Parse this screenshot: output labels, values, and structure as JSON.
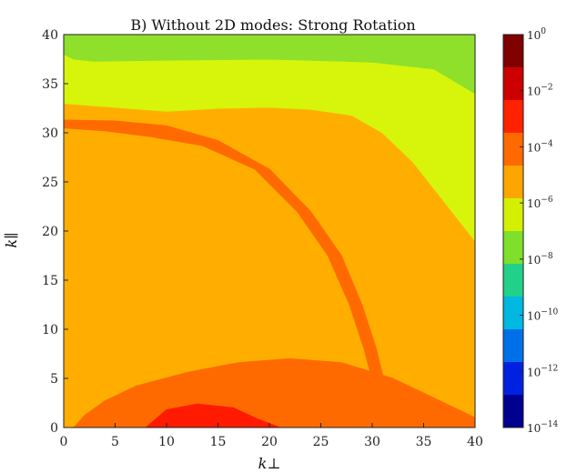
{
  "chart_data": {
    "type": "heatmap",
    "title": "B) Without 2D modes: Strong Rotation",
    "xlabel": "k⊥",
    "ylabel": "k∥",
    "xlim": [
      0,
      40
    ],
    "ylim": [
      0,
      40
    ],
    "x_ticks": [
      "0",
      "5",
      "10",
      "15",
      "20",
      "25",
      "30",
      "35",
      "40"
    ],
    "y_ticks": [
      "0",
      "5",
      "10",
      "15",
      "20",
      "25",
      "30",
      "35",
      "40"
    ],
    "x_tick_values": [
      0,
      5,
      10,
      15,
      20,
      25,
      30,
      35,
      40
    ],
    "y_tick_values": [
      0,
      5,
      10,
      15,
      20,
      25,
      30,
      35,
      40
    ],
    "scale": "log",
    "colorbar": {
      "labels": [
        "10^0",
        "10^-2",
        "10^-4",
        "10^-6",
        "10^-8",
        "10^-10",
        "10^-12",
        "10^-14"
      ],
      "bands": [
        "#800000",
        "#cc0000",
        "#ff2200",
        "#ff6a00",
        "#ffa500",
        "#d4f000",
        "#7ee02a",
        "#22d08a",
        "#00b8e0",
        "#0070e8",
        "#0022e0",
        "#000090"
      ]
    },
    "regions": [
      {
        "name": "background",
        "level": "10^-5 to 10^-4",
        "color": "#ffae00",
        "points": [
          [
            0,
            0
          ],
          [
            40,
            0
          ],
          [
            40,
            40
          ],
          [
            0,
            40
          ]
        ]
      },
      {
        "name": "upper-band",
        "level": "10^-6 to 10^-5",
        "color": "#d6f50a",
        "points": [
          [
            0,
            40
          ],
          [
            40,
            40
          ],
          [
            40,
            19
          ],
          [
            37,
            23
          ],
          [
            34,
            27
          ],
          [
            31,
            30
          ],
          [
            28,
            31.8
          ],
          [
            24,
            32.4
          ],
          [
            20,
            32.6
          ],
          [
            15,
            32.5
          ],
          [
            10,
            32.2
          ],
          [
            5,
            32.6
          ],
          [
            0,
            33
          ]
        ]
      },
      {
        "name": "top-band",
        "level": "10^-7 to 10^-6",
        "color": "#8ee02a",
        "points": [
          [
            0,
            40
          ],
          [
            40,
            40
          ],
          [
            40,
            34
          ],
          [
            36,
            36.5
          ],
          [
            30,
            37.2
          ],
          [
            20,
            37.5
          ],
          [
            10,
            37.4
          ],
          [
            3,
            37.3
          ],
          [
            1,
            37.5
          ],
          [
            0,
            38
          ]
        ]
      },
      {
        "name": "ridge",
        "level": "10^-4 to 10^-3",
        "color": "#ff6a00",
        "points": [
          [
            0,
            31.3
          ],
          [
            5,
            31.2
          ],
          [
            10,
            30.7
          ],
          [
            15,
            29.2
          ],
          [
            20,
            26.3
          ],
          [
            24,
            22
          ],
          [
            27,
            17.5
          ],
          [
            29,
            12.5
          ],
          [
            30.4,
            8
          ],
          [
            31.2,
            4.5
          ],
          [
            32,
            2
          ],
          [
            31.2,
            2.2
          ],
          [
            30.1,
            4.5
          ],
          [
            29.2,
            8
          ],
          [
            27.8,
            12.5
          ],
          [
            25.7,
            17.5
          ],
          [
            22.7,
            22
          ],
          [
            18.6,
            26.3
          ],
          [
            13.5,
            28.7
          ],
          [
            8.5,
            29.6
          ],
          [
            4,
            30.2
          ],
          [
            0,
            30.5
          ]
        ]
      },
      {
        "name": "bottom-band",
        "level": "10^-4 to 10^-3",
        "color": "#ff6a00",
        "points": [
          [
            1,
            0
          ],
          [
            40,
            0
          ],
          [
            40,
            1
          ],
          [
            36,
            3
          ],
          [
            32,
            5
          ],
          [
            27,
            6.6
          ],
          [
            22,
            7
          ],
          [
            17,
            6.6
          ],
          [
            12,
            5.6
          ],
          [
            7,
            4.2
          ],
          [
            4,
            2.7
          ],
          [
            2,
            1.2
          ]
        ]
      },
      {
        "name": "core",
        "level": "10^-3 to 10^-2",
        "color": "#ff1a00",
        "points": [
          [
            8,
            0
          ],
          [
            21,
            0
          ],
          [
            19,
            0.8
          ],
          [
            16.5,
            2
          ],
          [
            13,
            2.4
          ],
          [
            10,
            1.8
          ]
        ]
      }
    ]
  }
}
